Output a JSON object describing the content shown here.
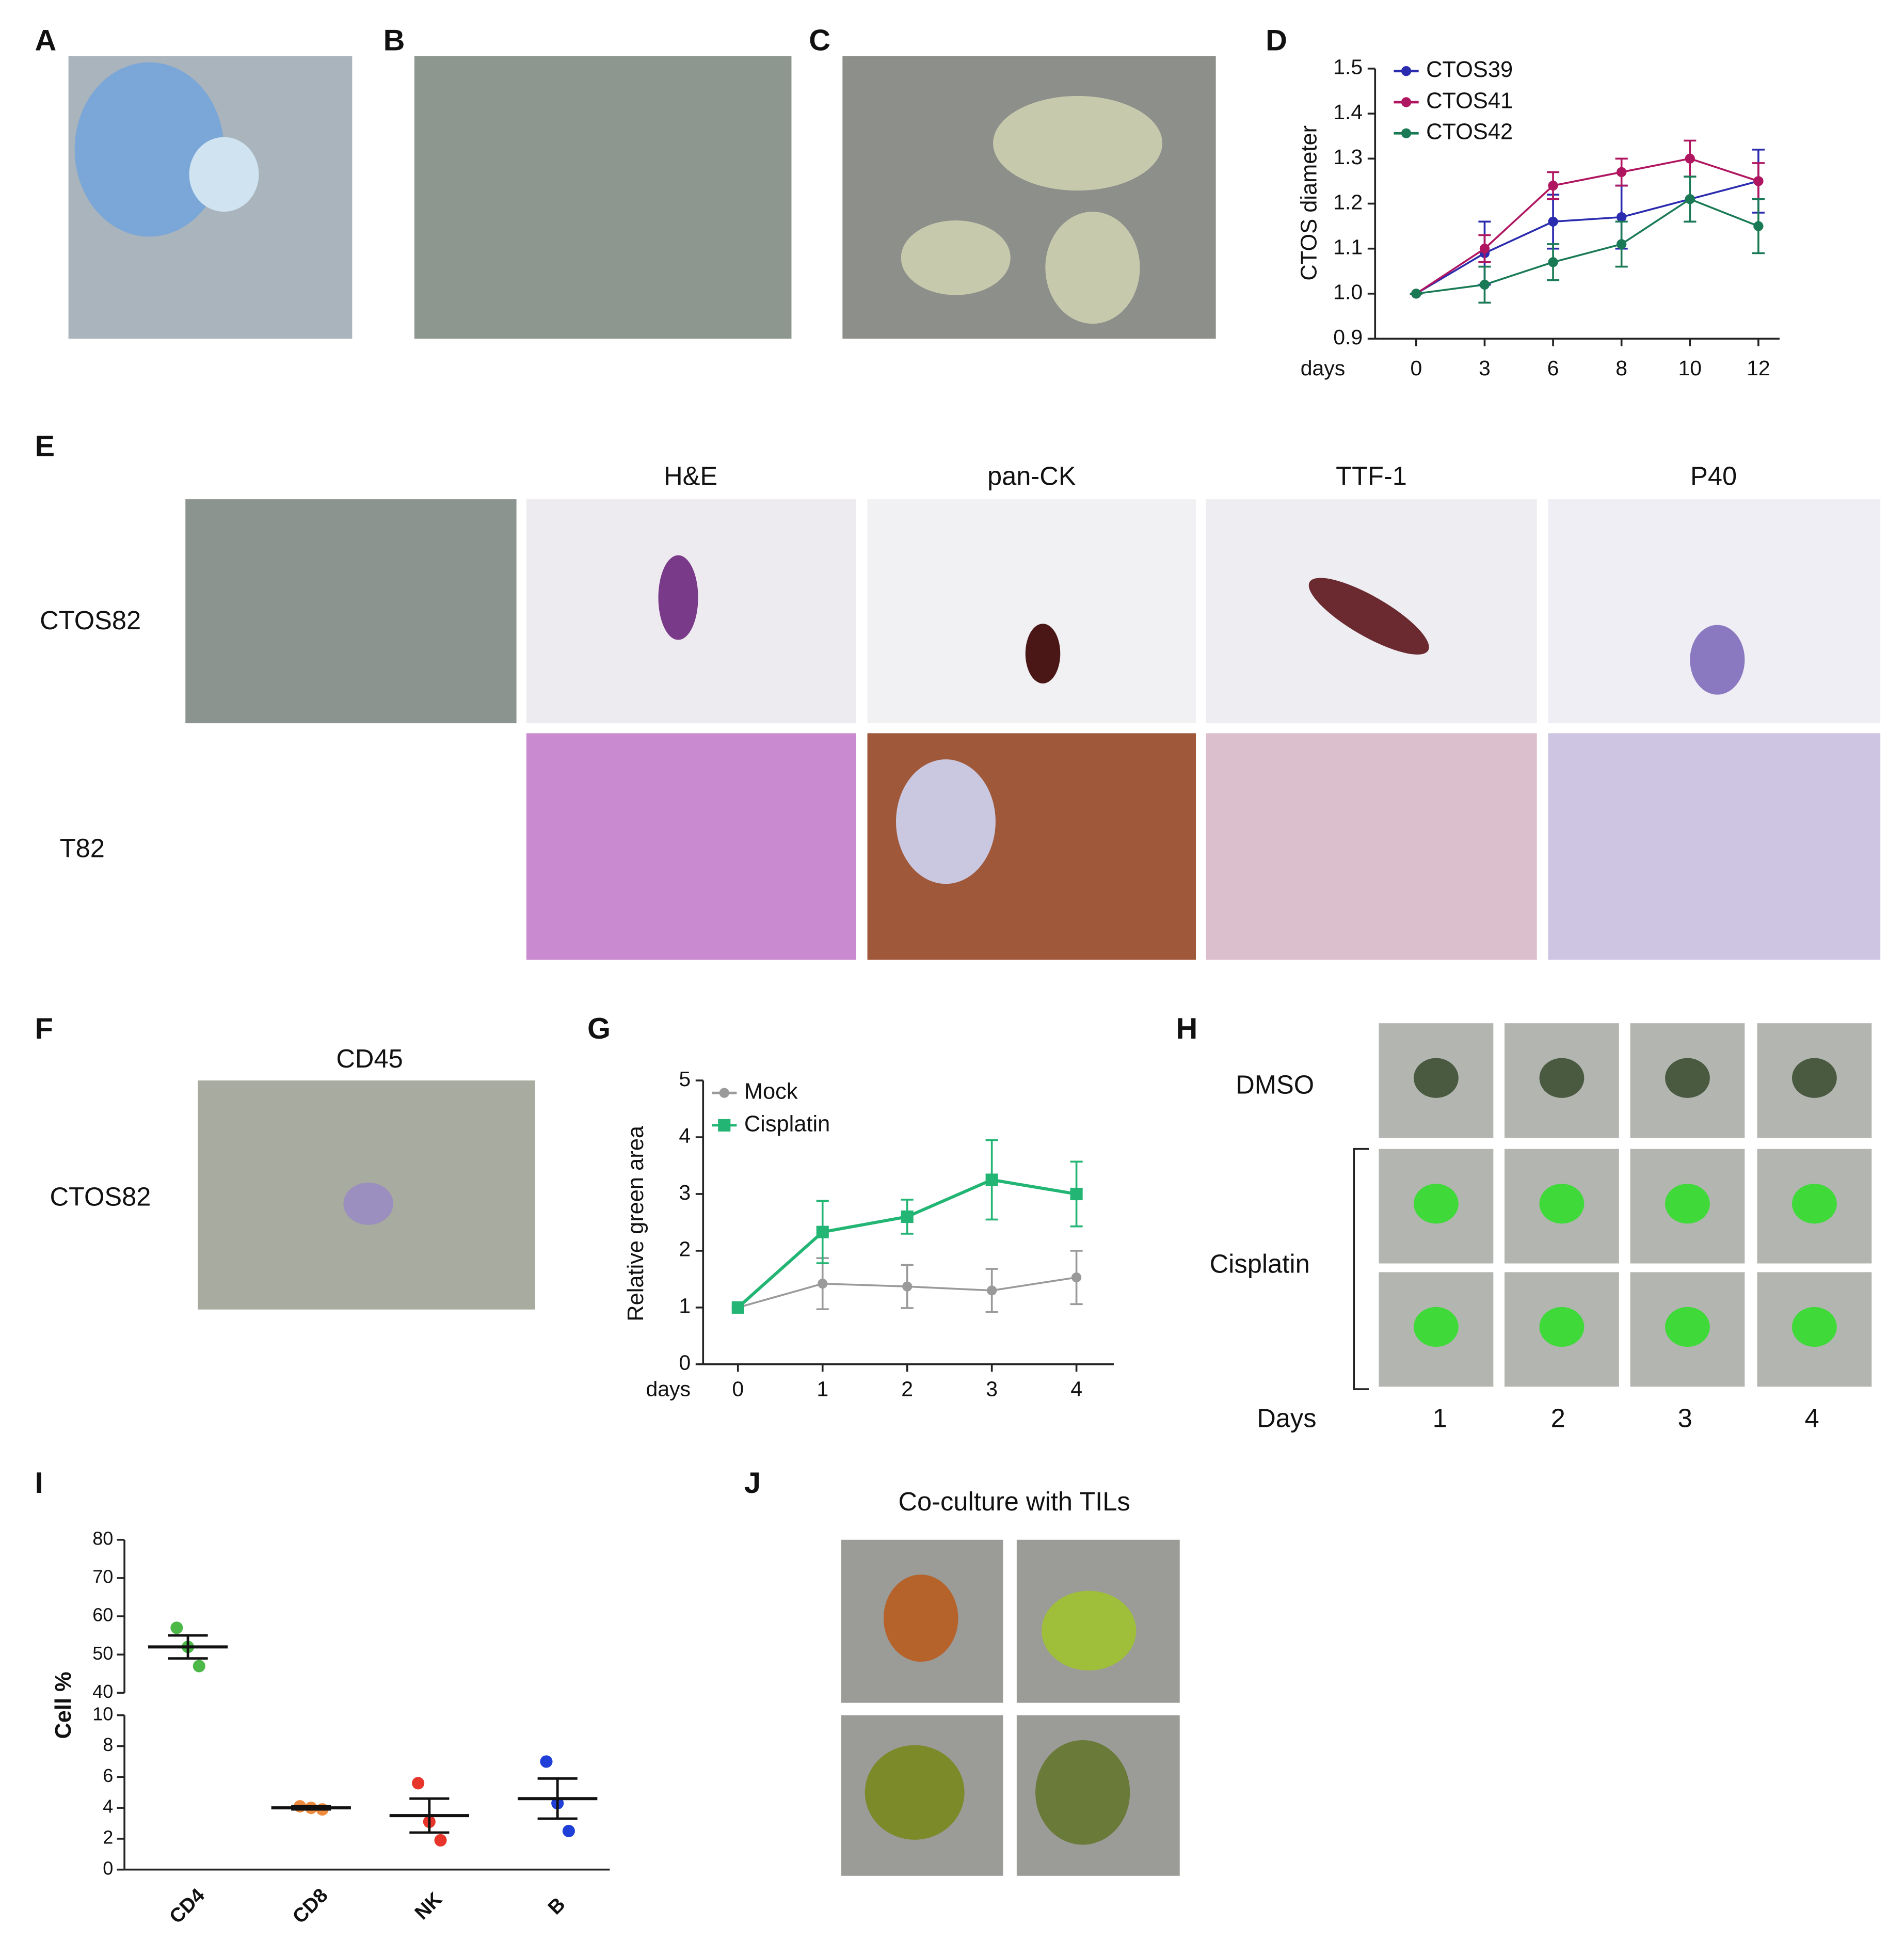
{
  "figure": {
    "panel_labels": [
      "A",
      "B",
      "C",
      "D",
      "E",
      "F",
      "G",
      "H",
      "I",
      "J"
    ],
    "e_columns": [
      "H&E",
      "pan-CK",
      "TTF-1",
      "P40"
    ],
    "e_rows": [
      "CTOS82",
      "T82"
    ],
    "f_title": "CD45",
    "f_row": "CTOS82",
    "h_rows": [
      "DMSO",
      "Cisplatin"
    ],
    "h_xlabel": "Days",
    "h_days": [
      "1",
      "2",
      "3",
      "4"
    ],
    "j_title": "Co-culture with TILs"
  },
  "chart_data": [
    {
      "type": "line",
      "ylabel": "CTOS diameter",
      "xlabel": "days",
      "categories": [
        "0",
        "3",
        "6",
        "8",
        "10",
        "12"
      ],
      "ylim": [
        0.9,
        1.5
      ],
      "yticks": [
        0.9,
        {
          "value": 1.0,
          "label": "1.0"
        },
        1.1,
        1.2,
        1.3,
        1.4,
        1.5
      ],
      "legend": "upper-left",
      "series": [
        {
          "name": "CTOS39",
          "color": "#2b2bb0",
          "marker": "circle",
          "values": [
            1.0,
            1.09,
            1.16,
            1.17,
            1.21,
            1.25
          ],
          "errors": [
            0,
            0.07,
            0.06,
            0.07,
            0.05,
            0.07
          ]
        },
        {
          "name": "CTOS41",
          "color": "#b01560",
          "marker": "circle",
          "values": [
            1.0,
            1.1,
            1.24,
            1.27,
            1.3,
            1.25
          ],
          "errors": [
            0,
            0.03,
            0.03,
            0.03,
            0.04,
            0.04
          ]
        },
        {
          "name": "CTOS42",
          "color": "#1a7a55",
          "marker": "circle",
          "values": [
            1.0,
            1.02,
            1.07,
            1.11,
            1.21,
            1.15
          ],
          "errors": [
            0,
            0.04,
            0.04,
            0.05,
            0.05,
            0.06
          ]
        }
      ]
    },
    {
      "type": "line",
      "ylabel": "Relative green area",
      "xlabel": "days",
      "categories": [
        "0",
        "1",
        "2",
        "3",
        "4"
      ],
      "ylim": [
        0,
        5
      ],
      "yticks": [
        0,
        1,
        2,
        3,
        4,
        5
      ],
      "legend": "upper-left",
      "series": [
        {
          "name": "Mock",
          "color": "#9a9a9a",
          "marker": "circle",
          "values": [
            1,
            1.42,
            1.37,
            1.3,
            1.53
          ],
          "errors": [
            0,
            0.45,
            0.38,
            0.38,
            0.47
          ]
        },
        {
          "name": "Cisplatin",
          "color": "#22b573",
          "marker": "square",
          "values": [
            1,
            2.33,
            2.6,
            3.25,
            3.0
          ],
          "errors": [
            0,
            0.55,
            0.3,
            0.7,
            0.57
          ]
        }
      ]
    },
    {
      "type": "dot",
      "ylabel": "Cell %",
      "categories": [
        "CD4",
        "CD8",
        "NK",
        "B"
      ],
      "colors": [
        "#4cb848",
        "#f08a3c",
        "#e8352b",
        "#1f3fd8"
      ],
      "points": [
        [
          57,
          52,
          47
        ],
        [
          4.1,
          4.0,
          3.9
        ],
        [
          5.6,
          3.1,
          1.9
        ],
        [
          7.0,
          4.3,
          2.5
        ]
      ],
      "means": [
        52,
        4.0,
        3.5,
        4.6
      ],
      "errors": [
        3,
        0.1,
        1.1,
        1.3
      ],
      "ysegments": [
        [
          0,
          10
        ],
        [
          40,
          80
        ]
      ],
      "yticks": [
        0,
        2,
        4,
        6,
        8,
        10,
        40,
        50,
        60,
        70,
        80
      ]
    }
  ]
}
